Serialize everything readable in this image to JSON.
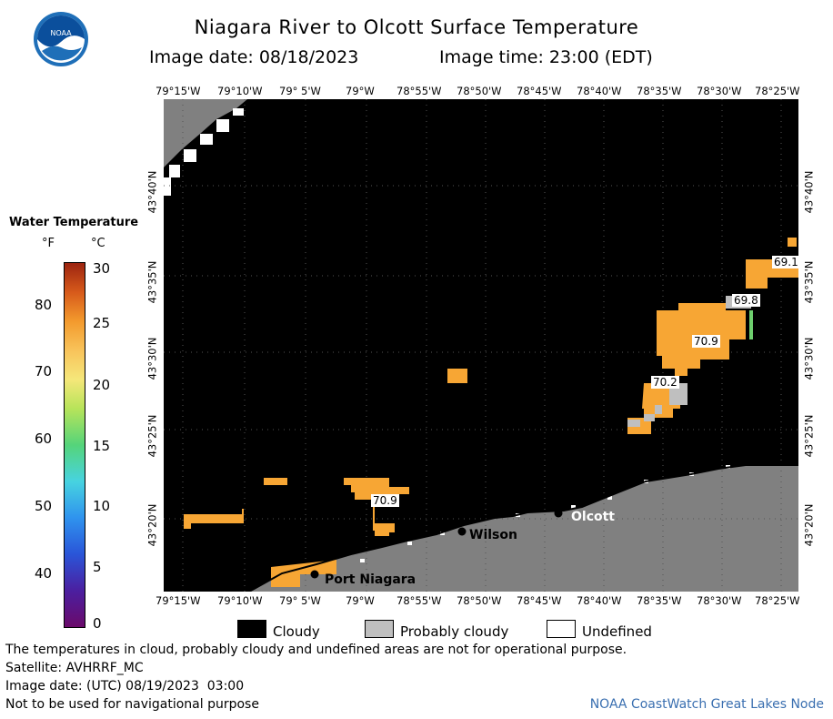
{
  "header": {
    "title": "Niagara River to Olcott Surface Temperature",
    "subtitle_date": "Image date: 08/18/2023",
    "subtitle_time": "Image time: 23:00 (EDT)",
    "logo_text": "NOAA"
  },
  "map": {
    "lon_labels": [
      "79°15'W",
      "79°10'W",
      "79° 5'W",
      "79°W",
      "78°55'W",
      "78°50'W",
      "78°45'W",
      "78°40'W",
      "78°35'W",
      "78°30'W",
      "78°25'W"
    ],
    "lat_labels": [
      "43°40'N",
      "43°35'N",
      "43°30'N",
      "43°25'N",
      "43°20'N"
    ],
    "places": [
      {
        "name": "Port Niagara"
      },
      {
        "name": "Wilson"
      },
      {
        "name": "Olcott"
      }
    ],
    "temperature_labels": [
      "69.1",
      "69.8",
      "70.9",
      "70.2",
      "70.9"
    ],
    "colors": {
      "cloud": "#000000",
      "land": "#808080",
      "warm": "#f7a634",
      "probably_cloudy": "#bfbfbf",
      "undefined": "#ffffff"
    }
  },
  "colorbar": {
    "title": "Water Temperature",
    "unit_f": "°F",
    "unit_c": "°C",
    "f_ticks": [
      "80",
      "70",
      "60",
      "50",
      "40"
    ],
    "c_ticks": [
      "30",
      "25",
      "20",
      "15",
      "10",
      "5",
      "0"
    ]
  },
  "legend": {
    "items": [
      {
        "label": "Cloudy",
        "color": "#000000"
      },
      {
        "label": "Probably cloudy",
        "color": "#bfbfbf"
      },
      {
        "label": "Undefined",
        "color": "#ffffff"
      }
    ]
  },
  "footer": {
    "note": "The temperatures in cloud, probably cloudy and undefined areas are not for operational purpose.",
    "satellite": "Satellite: AVHRRF_MC",
    "utc_date": "Image date: (UTC) 08/19/2023  03:00",
    "nav_warning": "Not to be used for navigational purpose",
    "credit": "NOAA CoastWatch Great Lakes Node"
  }
}
